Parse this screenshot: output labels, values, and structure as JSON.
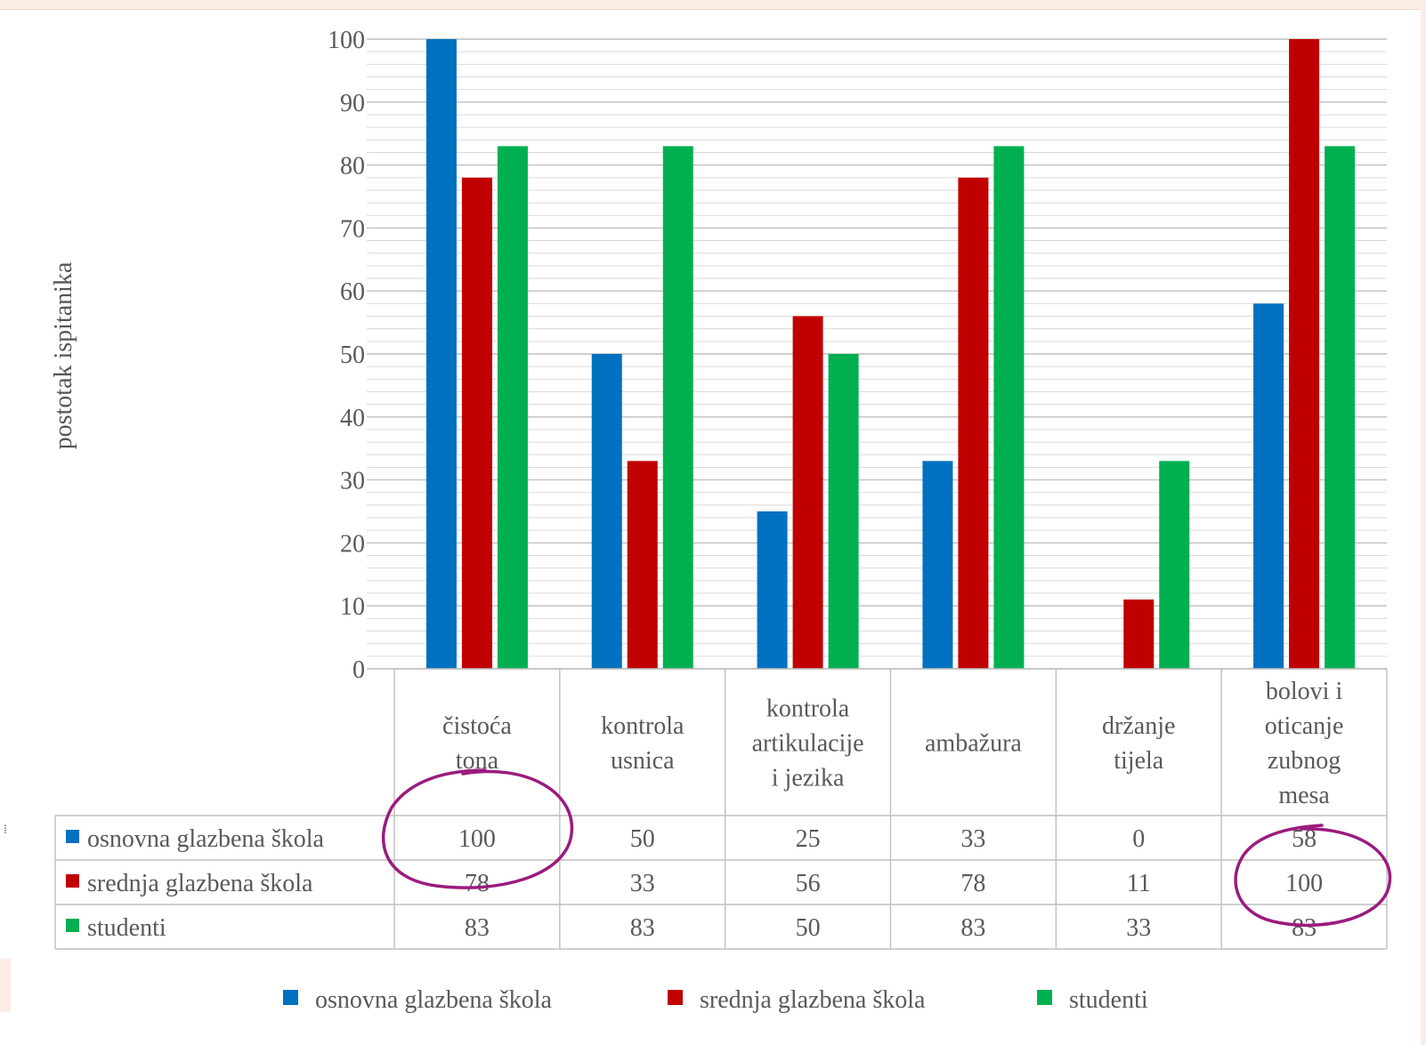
{
  "chart_data": {
    "type": "bar",
    "ylabel": "postotak ispitanika",
    "ylim": [
      0,
      100
    ],
    "yticks": [
      "0",
      "10",
      "20",
      "30",
      "40",
      "50",
      "60",
      "70",
      "80",
      "90",
      "100"
    ],
    "grid": true,
    "legend_position": "bottom",
    "categories": [
      [
        "čistoća",
        "tona"
      ],
      [
        "kontrola",
        "usnica"
      ],
      [
        "kontrola",
        "artikulacije",
        "i jezika"
      ],
      [
        "ambažura"
      ],
      [
        "držanje",
        "tijela"
      ],
      [
        "bolovi i",
        "oticanje",
        "zubnog",
        "mesa"
      ]
    ],
    "series": [
      {
        "name": "osnovna glazbena škola",
        "color": "#0070c0",
        "values": [
          100,
          50,
          25,
          33,
          0,
          58
        ]
      },
      {
        "name": "srednja glazbena škola",
        "color": "#c00000",
        "values": [
          78,
          33,
          56,
          78,
          11,
          100
        ]
      },
      {
        "name": "studenti",
        "color": "#00b050",
        "values": [
          83,
          83,
          50,
          83,
          33,
          83
        ]
      }
    ],
    "annotations": [
      {
        "type": "hand-drawn-circle",
        "color": "#9b1b7e",
        "target": "čistoća tona — osnovna glazbena škola 100"
      },
      {
        "type": "hand-drawn-circle",
        "color": "#9b1b7e",
        "target": "bolovi i oticanje zubnog mesa — srednja glazbena škola 100"
      }
    ]
  }
}
